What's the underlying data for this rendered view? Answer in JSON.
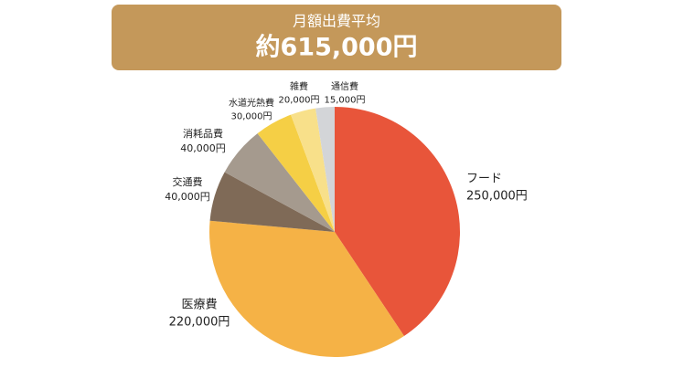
{
  "chart_data": {
    "type": "pie",
    "title": "月額出費平均",
    "subtitle": "約615,000円",
    "categories": [
      "フード",
      "医療費",
      "交通費",
      "消耗品費",
      "水道光熱費",
      "雑費",
      "通信費"
    ],
    "values": [
      250000,
      220000,
      40000,
      40000,
      30000,
      20000,
      15000
    ],
    "value_labels": [
      "250,000円",
      "220,000円",
      "40,000円",
      "40,000円",
      "30,000円",
      "20,000円",
      "15,000円"
    ],
    "colors": [
      "#e8553a",
      "#f5b246",
      "#7f6a57",
      "#a59a8e",
      "#f5cf45",
      "#f8e08a",
      "#d3d5d8"
    ]
  }
}
